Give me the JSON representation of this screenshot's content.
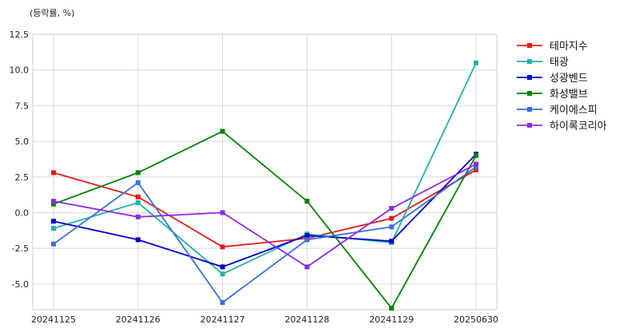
{
  "chart_data": {
    "type": "line",
    "unit_label": "(등락률, %)",
    "categories": [
      "20241125",
      "20241126",
      "20241127",
      "20241128",
      "20241129",
      "20250630"
    ],
    "ylim": [
      -6.8,
      12.5
    ],
    "yticks": [
      12.5,
      10.0,
      7.5,
      5.0,
      2.5,
      0.0,
      -2.5,
      -5.0
    ],
    "ytick_labels": [
      "12.5",
      "10.0",
      "7.5",
      "5.0",
      "2.5",
      "0.0",
      "-2.5",
      "-5.0"
    ],
    "grid": true,
    "legend_position": "right",
    "series": [
      {
        "name": "테마지수",
        "color": "#e31a1c",
        "values": [
          2.8,
          1.1,
          -2.4,
          -1.8,
          -0.4,
          3.0
        ]
      },
      {
        "name": "태광",
        "color": "#20b2aa",
        "values": [
          -1.1,
          0.7,
          -4.3,
          -1.5,
          -2.1,
          10.5
        ]
      },
      {
        "name": "성광벤드",
        "color": "#0000cd",
        "values": [
          -0.6,
          -1.9,
          -3.8,
          -1.6,
          -2.0,
          4.1
        ]
      },
      {
        "name": "화성밸브",
        "color": "#008000",
        "values": [
          0.6,
          2.8,
          5.7,
          0.8,
          -6.7,
          4.0
        ]
      },
      {
        "name": "케이에스피",
        "color": "#3a6fd8",
        "values": [
          -2.2,
          2.1,
          -6.3,
          -1.9,
          -1.0,
          3.2
        ]
      },
      {
        "name": "하이록코리아",
        "color": "#8a2be2",
        "values": [
          0.8,
          -0.3,
          0.0,
          -3.8,
          0.3,
          3.4
        ]
      }
    ]
  }
}
